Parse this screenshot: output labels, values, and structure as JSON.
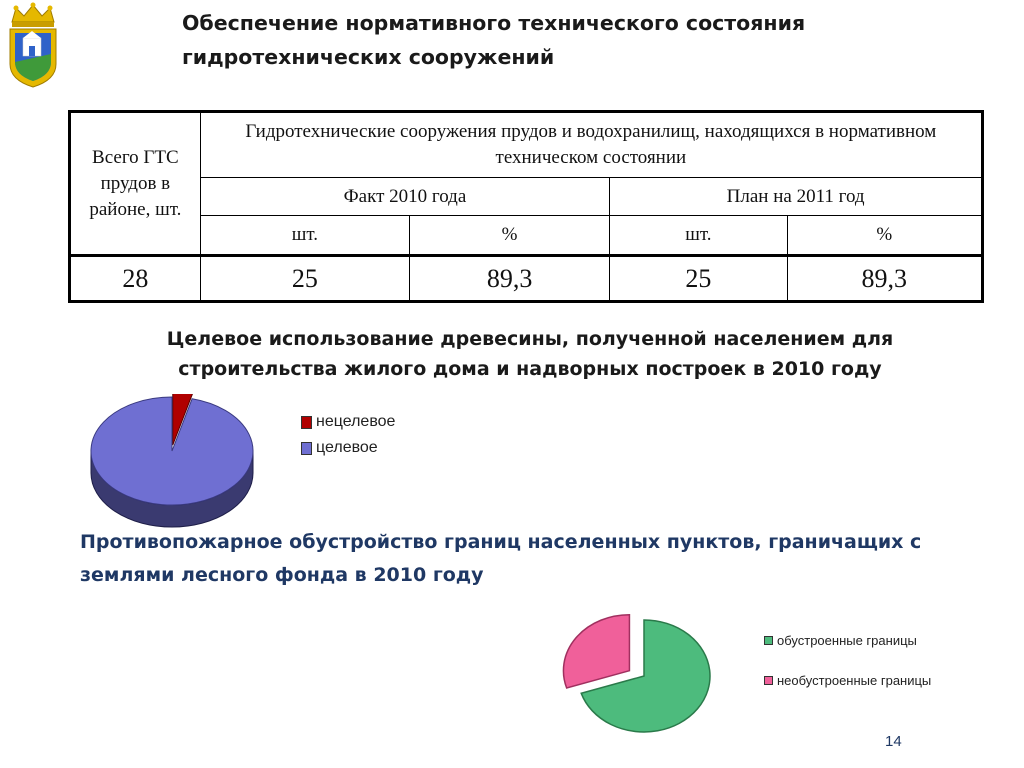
{
  "slide": {
    "title_lines": [
      "Обеспечение нормативного технического состояния",
      "гидротехнических сооружений"
    ],
    "page_number": "14"
  },
  "table": {
    "col_total": "Всего ГТС прудов в районе, шт.",
    "group_header": "Гидротехнические сооружения прудов и водохранилищ, находящихся в нормативном техническом состоянии",
    "fact_header": "Факт 2010 года",
    "plan_header": "План на 2011 год",
    "unit_pcs": "шт.",
    "unit_pct": "%",
    "values": {
      "total": "28",
      "fact_pcs": "25",
      "fact_pct": "89,3",
      "plan_pcs": "25",
      "plan_pct": "89,3"
    }
  },
  "section1": {
    "title_lines": [
      "Целевое использование древесины, полученной населением для",
      "строительства жилого дома и надворных построек в 2010 году"
    ]
  },
  "section2": {
    "title_lines": [
      "Противопожарное обустройство границ населенных пунктов, граничащих с",
      "землями лесного фонда в 2010 году"
    ]
  },
  "chart_data": [
    {
      "type": "pie",
      "legend_position": "right",
      "slices": [
        {
          "label": "нецелевое",
          "value": 4,
          "color": "#b00000"
        },
        {
          "label": "целевое",
          "value": 96,
          "color": "#6f6fd2"
        }
      ]
    },
    {
      "type": "pie",
      "legend_position": "right",
      "slices": [
        {
          "label": "обустроенные границы",
          "value": 70,
          "color": "#4dbb7d"
        },
        {
          "label": "необустроенные границы",
          "value": 30,
          "color": "#f0609a"
        }
      ]
    }
  ],
  "colors": {
    "title_dark": "#1a1a1a",
    "section_blue": "#1f3864",
    "pie1_side": "#3a3a70",
    "emblem_gold": "#e5b800"
  }
}
